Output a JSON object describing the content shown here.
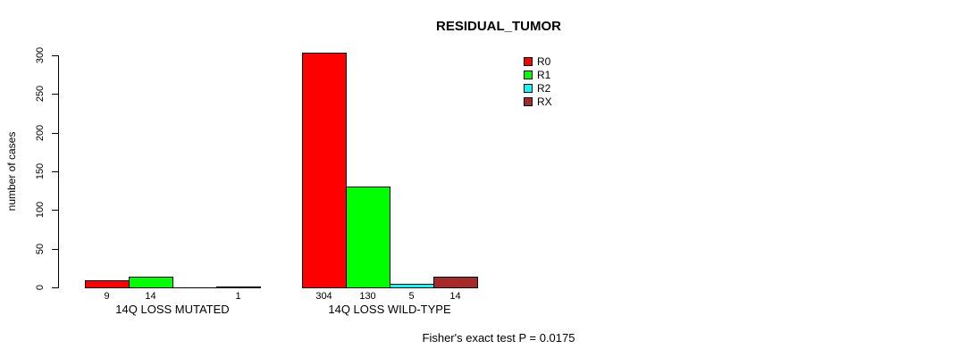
{
  "chart_data": {
    "type": "bar",
    "title": "RESIDUAL_TUMOR",
    "ylabel": "number of cases",
    "xlabel": "",
    "ylim": [
      0,
      300
    ],
    "yticks": [
      0,
      50,
      100,
      150,
      200,
      250,
      300
    ],
    "grid": false,
    "legend_position": "top-right-inside",
    "categories": [
      "14Q LOSS MUTATED",
      "14Q LOSS WILD-TYPE"
    ],
    "series": [
      {
        "name": "R0",
        "color": "#ff0000",
        "values": [
          9,
          304
        ]
      },
      {
        "name": "R1",
        "color": "#00ff00",
        "values": [
          14,
          130
        ]
      },
      {
        "name": "R2",
        "color": "#00ffff",
        "values": [
          0,
          5
        ]
      },
      {
        "name": "RX",
        "color": "#a52a2a",
        "values": [
          1,
          14
        ]
      }
    ],
    "bar_value_labels": [
      [
        "9",
        "14",
        "",
        "1"
      ],
      [
        "304",
        "130",
        "5",
        "14"
      ]
    ],
    "annotation": "Fisher's exact test P = 0.0175"
  }
}
